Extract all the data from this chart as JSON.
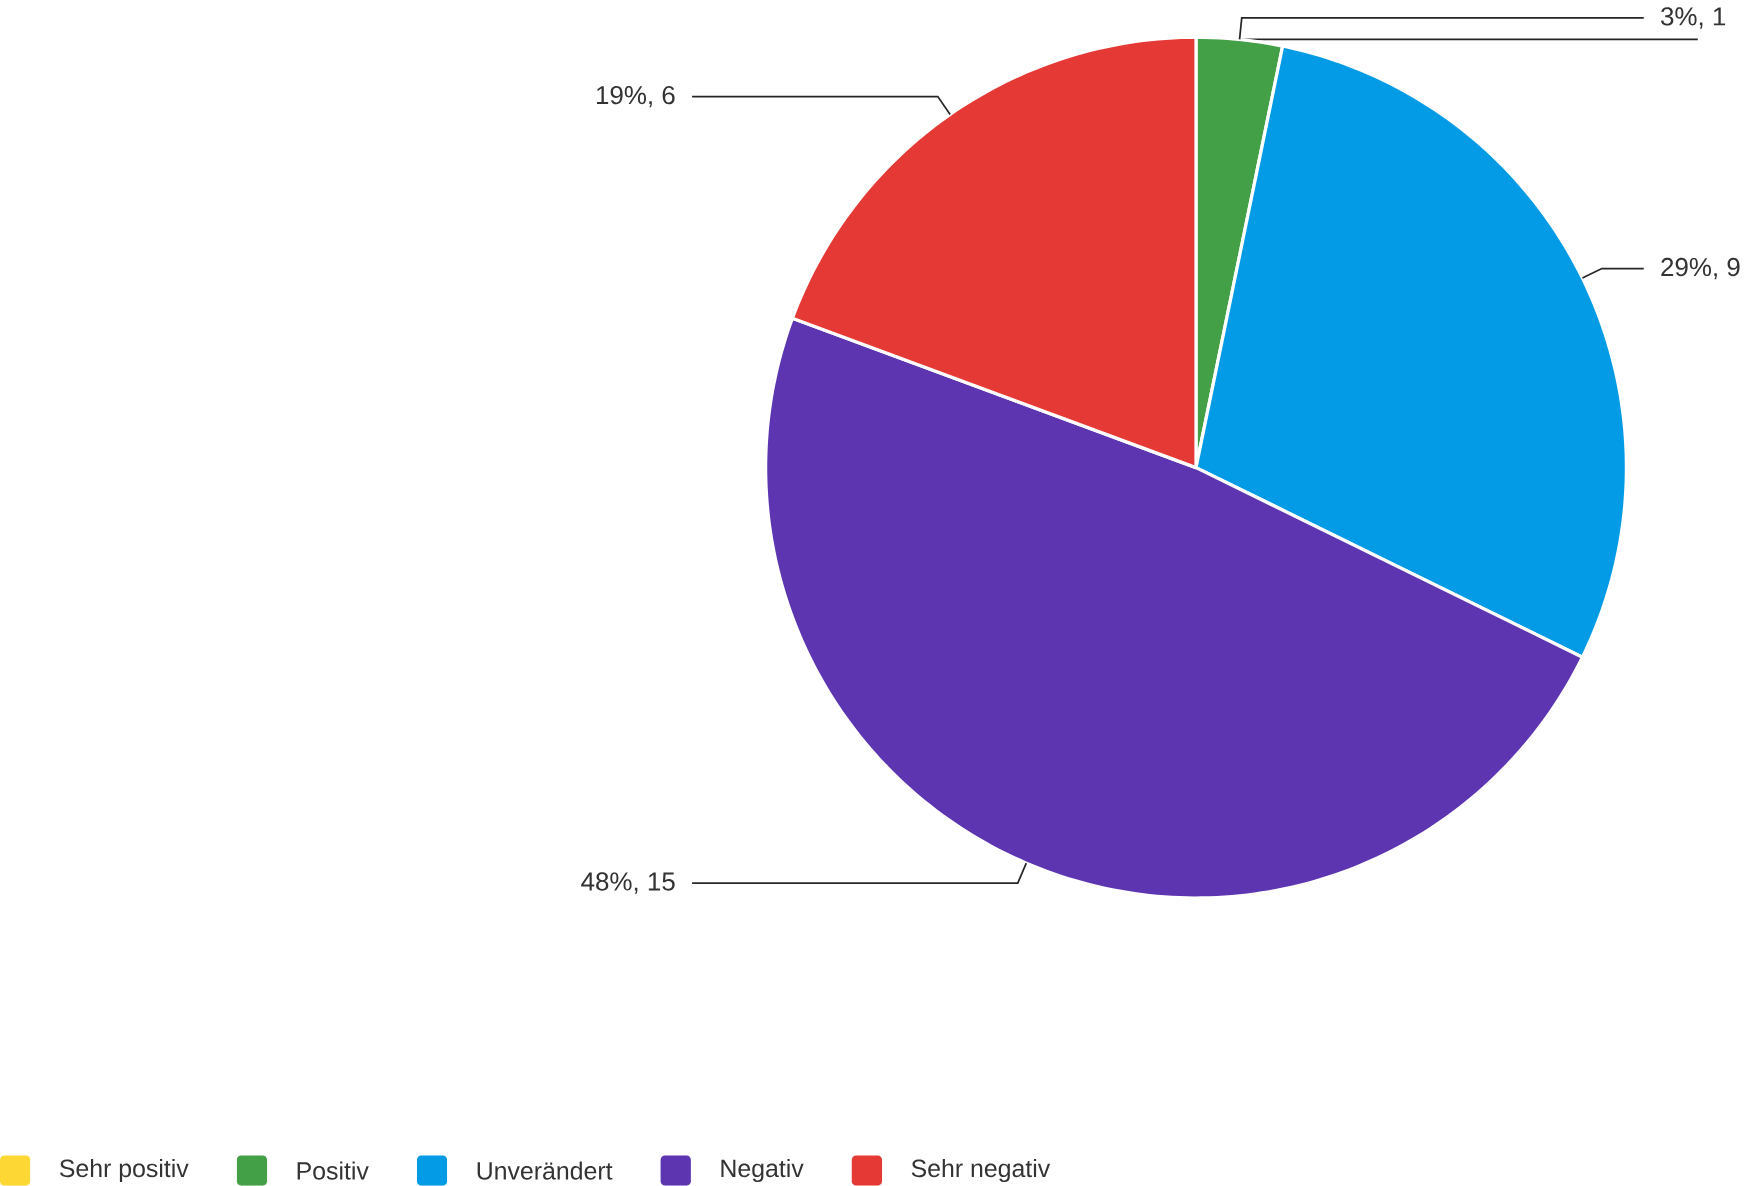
{
  "chart_data": {
    "type": "pie",
    "categories": [
      "Sehr positiv",
      "Positiv",
      "Unverändert",
      "Negativ",
      "Sehr negativ"
    ],
    "values": [
      0,
      1,
      9,
      15,
      6
    ],
    "colors": [
      "#fdd835",
      "#43a047",
      "#039be5",
      "#5e35b1",
      "#e53935"
    ],
    "value_labels": [
      null,
      "3%, 1",
      "29%, 9",
      "48%, 15",
      "19%, 6"
    ],
    "legend": "bottom"
  }
}
